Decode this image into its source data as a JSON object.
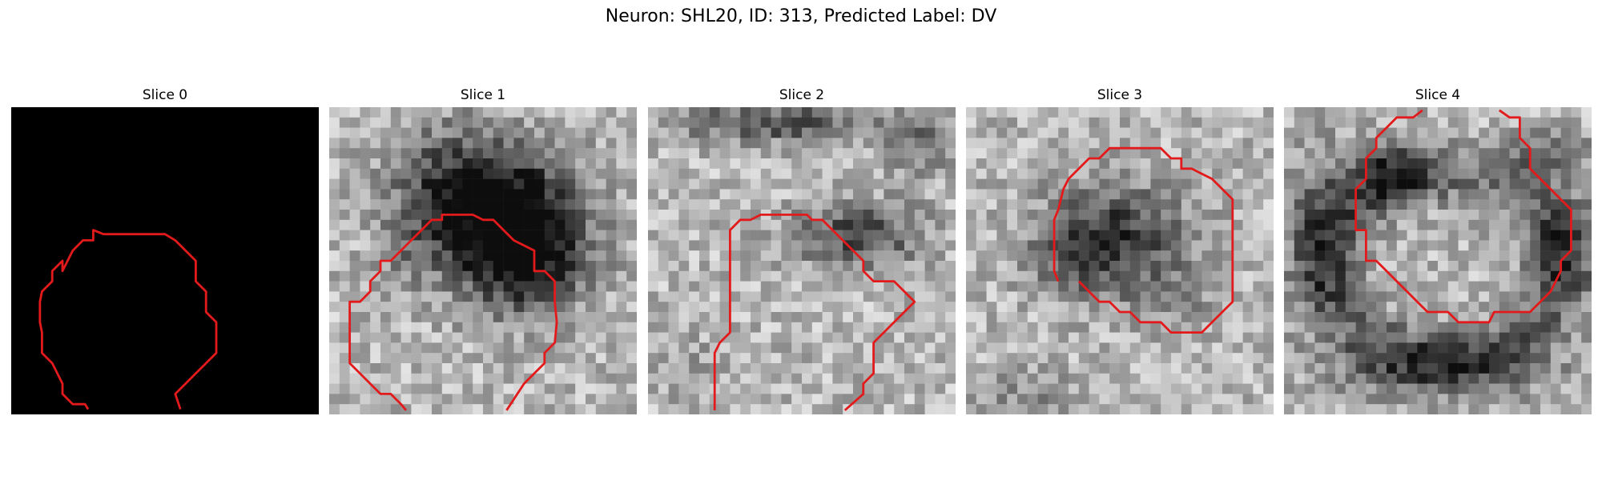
{
  "figure": {
    "title": "Neuron: SHL20, ID: 313, Predicted Label: DV"
  },
  "contour_color": "#e31a1c",
  "panels": [
    {
      "title": "Slice 0",
      "background": "black"
    },
    {
      "title": "Slice 1",
      "background": "grayscale"
    },
    {
      "title": "Slice 2",
      "background": "grayscale"
    },
    {
      "title": "Slice 3",
      "background": "grayscale"
    },
    {
      "title": "Slice 4",
      "background": "grayscale"
    }
  ]
}
